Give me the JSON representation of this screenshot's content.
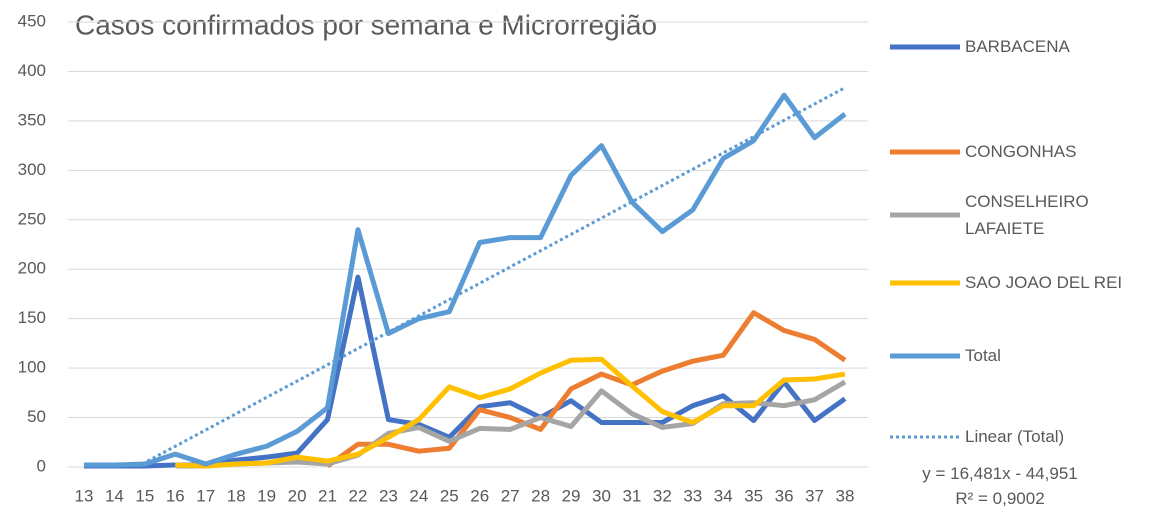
{
  "chart_data": {
    "type": "line",
    "title": "Casos confirmados por semana e Microrregião",
    "categories": [
      "13",
      "14",
      "15",
      "16",
      "17",
      "18",
      "19",
      "20",
      "21",
      "22",
      "23",
      "24",
      "25",
      "26",
      "27",
      "28",
      "29",
      "30",
      "31",
      "32",
      "33",
      "34",
      "35",
      "36",
      "37",
      "38"
    ],
    "ylim": [
      0,
      450
    ],
    "yticks": [
      0,
      50,
      100,
      150,
      200,
      250,
      300,
      350,
      400,
      450
    ],
    "grid": true,
    "legend": "right",
    "series": [
      {
        "name": "BARBACENA",
        "color": "#4472c4",
        "values": [
          1,
          1,
          1,
          2,
          2,
          7,
          10,
          14,
          48,
          192,
          48,
          43,
          30,
          61,
          65,
          50,
          67,
          45,
          45,
          45,
          62,
          72,
          47,
          86,
          47,
          69
        ]
      },
      {
        "name": "CONGONHAS",
        "color": "#ed7d31",
        "values": [
          null,
          null,
          null,
          null,
          null,
          null,
          null,
          null,
          1,
          23,
          23,
          16,
          19,
          58,
          50,
          38,
          79,
          94,
          83,
          97,
          107,
          113,
          156,
          138,
          129,
          108
        ]
      },
      {
        "name": "CONSELHEIRO LAFAIETE",
        "color": "#a5a5a5",
        "values": [
          null,
          null,
          null,
          1,
          1,
          3,
          4,
          5,
          3,
          12,
          34,
          40,
          26,
          39,
          38,
          50,
          41,
          77,
          54,
          40,
          44,
          64,
          65,
          62,
          68,
          86
        ]
      },
      {
        "name": "SAO JOAO DEL REI",
        "color": "#ffc000",
        "values": [
          null,
          null,
          null,
          2,
          1,
          3,
          4,
          10,
          6,
          13,
          30,
          48,
          81,
          70,
          79,
          95,
          108,
          109,
          82,
          56,
          45,
          62,
          62,
          88,
          89,
          94
        ]
      },
      {
        "name": "Total",
        "color": "#5b9bd5",
        "values": [
          2,
          2,
          3,
          13,
          3,
          13,
          21,
          36,
          60,
          240,
          135,
          150,
          157,
          227,
          232,
          232,
          295,
          325,
          268,
          238,
          260,
          312,
          330,
          376,
          333,
          357
        ]
      }
    ],
    "trendline": {
      "name": "Linear (Total)",
      "color": "#5b9bd5",
      "slope": 16.481,
      "intercept": -44.951,
      "label": "y = 16,481x - 44,951",
      "r_squared": 0.9002,
      "r_squared_label": "R² = 0,9002"
    }
  }
}
